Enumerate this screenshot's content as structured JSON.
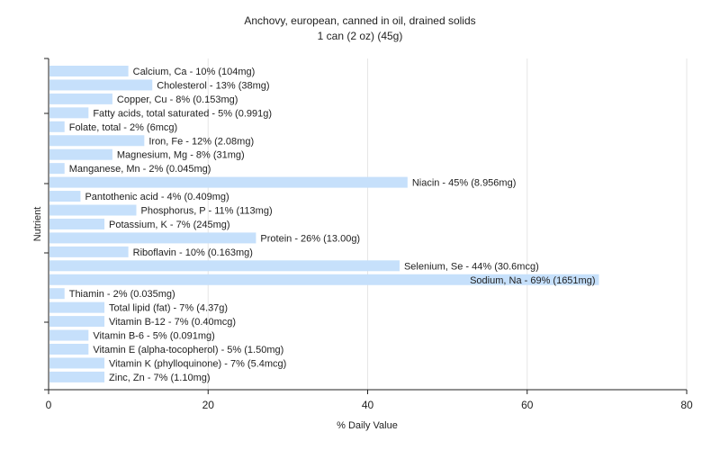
{
  "chart_data": {
    "type": "bar",
    "orientation": "horizontal",
    "title": "Anchovy, european, canned in oil, drained solids",
    "subtitle": "1 can (2 oz) (45g)",
    "xlabel": "% Daily Value",
    "ylabel": "Nutrient",
    "xlim": [
      0,
      80
    ],
    "xticks": [
      0,
      20,
      40,
      60,
      80
    ],
    "grid": true,
    "legend": "none",
    "bar_color": "#c6e0fb",
    "categories": [
      "Calcium, Ca",
      "Cholesterol",
      "Copper, Cu",
      "Fatty acids, total saturated",
      "Folate, total",
      "Iron, Fe",
      "Magnesium, Mg",
      "Manganese, Mn",
      "Niacin",
      "Pantothenic acid",
      "Phosphorus, P",
      "Potassium, K",
      "Protein",
      "Riboflavin",
      "Selenium, Se",
      "Sodium, Na",
      "Thiamin",
      "Total lipid (fat)",
      "Vitamin B-12",
      "Vitamin B-6",
      "Vitamin E (alpha-tocopherol)",
      "Vitamin K (phylloquinone)",
      "Zinc, Zn"
    ],
    "values": [
      10,
      13,
      8,
      5,
      2,
      12,
      8,
      2,
      45,
      4,
      11,
      7,
      26,
      10,
      44,
      69,
      2,
      7,
      7,
      5,
      5,
      7,
      7
    ],
    "labels": [
      "Calcium, Ca - 10% (104mg)",
      "Cholesterol - 13% (38mg)",
      "Copper, Cu - 8% (0.153mg)",
      "Fatty acids, total saturated - 5% (0.991g)",
      "Folate, total - 2% (6mcg)",
      "Iron, Fe - 12% (2.08mg)",
      "Magnesium, Mg - 8% (31mg)",
      "Manganese, Mn - 2% (0.045mg)",
      "Niacin - 45% (8.956mg)",
      "Pantothenic acid - 4% (0.409mg)",
      "Phosphorus, P - 11% (113mg)",
      "Potassium, K - 7% (245mg)",
      "Protein - 26% (13.00g)",
      "Riboflavin - 10% (0.163mg)",
      "Selenium, Se - 44% (30.6mcg)",
      "Sodium, Na - 69% (1651mg)",
      "Thiamin - 2% (0.035mg)",
      "Total lipid (fat) - 7% (4.37g)",
      "Vitamin B-12 - 7% (0.40mcg)",
      "Vitamin B-6 - 5% (0.091mg)",
      "Vitamin E (alpha-tocopherol) - 5% (1.50mg)",
      "Vitamin K (phylloquinone) - 7% (5.4mcg)",
      "Zinc, Zn - 7% (1.10mg)"
    ]
  }
}
